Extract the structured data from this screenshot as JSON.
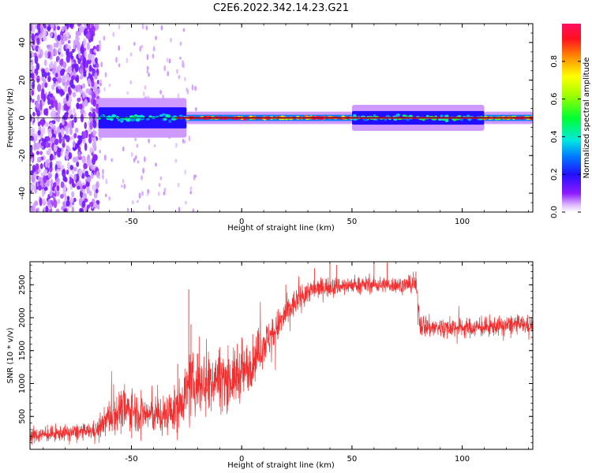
{
  "page": {
    "title": "C2E6.2022.342.14.23.G21",
    "background": "#ffffff"
  },
  "colorbar": {
    "label": "Normalized spectral amplitude",
    "range": [
      0,
      1
    ],
    "ticks": [
      "0.0",
      "0.2",
      "0.4",
      "0.6",
      "0.8"
    ],
    "tick_values": [
      0.0,
      0.2,
      0.4,
      0.6,
      0.8
    ],
    "colormap": "rainbow (white-violet-blue-cyan-green-yellow-red)"
  },
  "chart_data": [
    {
      "type": "heatmap",
      "name": "spectrogram",
      "xlabel": "Height of straight line (km)",
      "ylabel": "Frequency (Hz)",
      "xlim": [
        -96,
        132
      ],
      "ylim": [
        -50,
        50
      ],
      "x_ticks": [
        "-50",
        "0",
        "50",
        "100"
      ],
      "x_tick_values": [
        -50,
        0,
        50,
        100
      ],
      "y_ticks": [
        "-40",
        "-20",
        "0",
        "20",
        "40"
      ],
      "y_tick_values": [
        -40,
        -20,
        0,
        20,
        40
      ],
      "grid": false,
      "reference_line_hz": 0,
      "regions": [
        {
          "x_range": [
            -96,
            -65
          ],
          "freq_spread": [
            -50,
            50
          ],
          "amplitude": 0.15,
          "description": "broadband noise"
        },
        {
          "x_range": [
            -65,
            -25
          ],
          "freq_spread": [
            -5,
            5
          ],
          "amplitude": 0.45
        },
        {
          "x_range": [
            -25,
            50
          ],
          "freq_spread": [
            -1,
            1
          ],
          "amplitude": 1.0
        },
        {
          "x_range": [
            50,
            110
          ],
          "freq_spread": [
            -3,
            3
          ],
          "amplitude": 0.5
        },
        {
          "x_range": [
            110,
            132
          ],
          "freq_spread": [
            -1,
            1
          ],
          "amplitude": 1.0
        }
      ]
    },
    {
      "type": "line",
      "name": "snr",
      "xlabel": "Height of straight line (km)",
      "ylabel": "SNR (10 * v/v)",
      "xlim": [
        -96,
        132
      ],
      "ylim": [
        0,
        2850
      ],
      "x_ticks": [
        "-50",
        "0",
        "50",
        "100"
      ],
      "x_tick_values": [
        -50,
        0,
        50,
        100
      ],
      "y_ticks": [
        "500",
        "1000",
        "1500",
        "2000",
        "2500"
      ],
      "y_tick_values": [
        500,
        1000,
        1500,
        2000,
        2500
      ],
      "grid": false,
      "color": "#f03030",
      "series": [
        {
          "x": [
            -96,
            -90,
            -80,
            -70,
            -65,
            -60,
            -55,
            -50,
            -45,
            -40,
            -35,
            -30,
            -25,
            -20,
            -15,
            -10,
            -5,
            0,
            5,
            10,
            15,
            20,
            25,
            30,
            35,
            40,
            45,
            50,
            55,
            60,
            65,
            70,
            75,
            79,
            81,
            85,
            90,
            95,
            100,
            105,
            110,
            115,
            120,
            125,
            132
          ],
          "y": [
            200,
            220,
            250,
            270,
            300,
            500,
            600,
            600,
            550,
            520,
            520,
            600,
            900,
            1000,
            1050,
            1100,
            1050,
            1150,
            1350,
            1600,
            1800,
            2050,
            2250,
            2400,
            2450,
            2480,
            2480,
            2500,
            2500,
            2500,
            2500,
            2500,
            2500,
            2500,
            1900,
            1850,
            1850,
            1850,
            1850,
            1850,
            1850,
            1870,
            1880,
            1900,
            1880
          ],
          "noise_amplitude": [
            120,
            120,
            120,
            130,
            150,
            300,
            350,
            350,
            300,
            300,
            320,
            350,
            450,
            500,
            450,
            450,
            450,
            420,
            380,
            320,
            280,
            250,
            220,
            180,
            160,
            150,
            140,
            130,
            130,
            130,
            130,
            130,
            130,
            130,
            200,
            180,
            160,
            160,
            160,
            150,
            150,
            150,
            150,
            150,
            150
          ],
          "spikes": [
            {
              "x": -29,
              "y": 1300
            },
            {
              "x": -24,
              "y": 2430
            },
            {
              "x": -23,
              "y": 1900
            },
            {
              "x": -20,
              "y": 1450
            },
            {
              "x": -10,
              "y": 1550
            },
            {
              "x": -2,
              "y": 1600
            },
            {
              "x": 0,
              "y": 1700
            },
            {
              "x": 5,
              "y": 1750
            },
            {
              "x": 20,
              "y": 2500
            },
            {
              "x": 33,
              "y": 2750
            },
            {
              "x": 40,
              "y": 2850
            },
            {
              "x": 43,
              "y": 2800
            },
            {
              "x": 60,
              "y": 2850
            },
            {
              "x": 66,
              "y": 2840
            },
            {
              "x": 79,
              "y": 2700
            }
          ]
        }
      ]
    }
  ]
}
